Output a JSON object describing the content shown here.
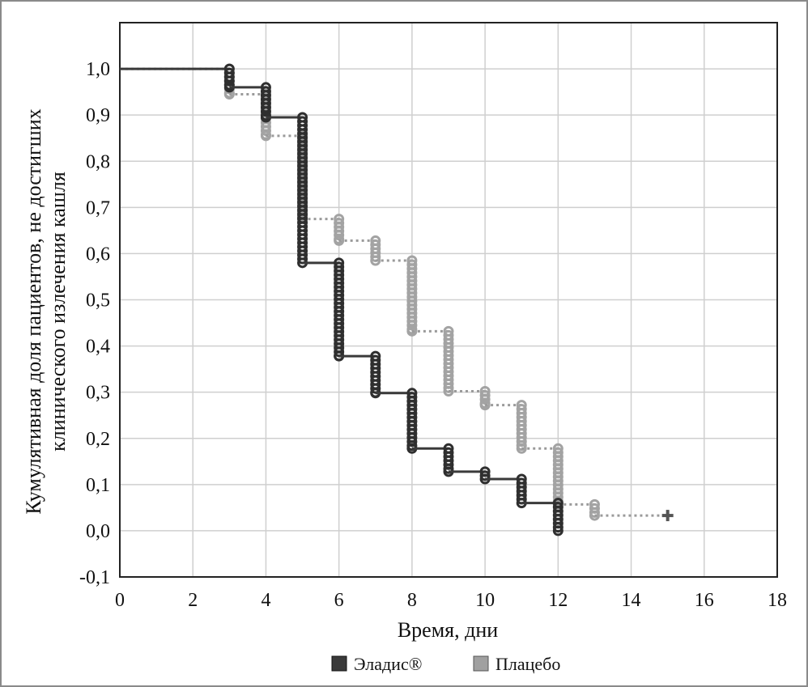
{
  "chart_data": {
    "type": "line",
    "step": true,
    "xlabel": "Время, дни",
    "ylabel_line1": "Кумулятивная доля пациентов, не достигших",
    "ylabel_line2": "клинического излечения кашля",
    "xlim": [
      0,
      18
    ],
    "ylim": [
      -0.1,
      1.1
    ],
    "x_ticks": [
      "0",
      "2",
      "4",
      "6",
      "8",
      "10",
      "12",
      "14",
      "16",
      "18"
    ],
    "y_ticks": [
      "-0,1",
      "0,0",
      "0,1",
      "0,2",
      "0,3",
      "0,4",
      "0,5",
      "0,6",
      "0,7",
      "0,8",
      "0,9",
      "1,0"
    ],
    "grid": true,
    "legend_position": "bottom",
    "series": [
      {
        "name": "Эладис®",
        "color": "#3a3a3a",
        "line_style": "solid",
        "x": [
          0,
          3,
          4,
          5,
          6,
          7,
          8,
          9,
          10,
          11,
          12
        ],
        "y": [
          1.0,
          0.96,
          0.895,
          0.58,
          0.378,
          0.298,
          0.178,
          0.128,
          0.112,
          0.06,
          0.0
        ]
      },
      {
        "name": "Плацебо",
        "color": "#9a9a9a",
        "line_style": "dotted",
        "x": [
          0,
          3,
          4,
          5,
          6,
          7,
          8,
          9,
          10,
          11,
          12,
          13,
          15
        ],
        "y": [
          1.0,
          0.945,
          0.855,
          0.675,
          0.628,
          0.585,
          0.432,
          0.302,
          0.272,
          0.178,
          0.057,
          0.033,
          0.033
        ],
        "censored_end": true
      }
    ]
  }
}
